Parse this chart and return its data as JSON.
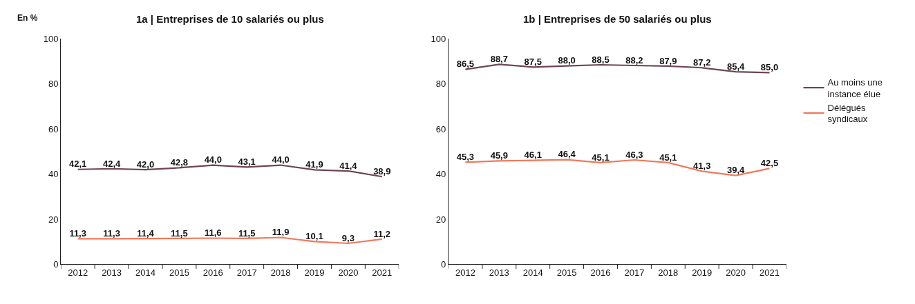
{
  "chart_data": [
    {
      "type": "line",
      "title": "1a | Entreprises de 10 salariés ou plus",
      "ylabel": "En %",
      "categories": [
        "2012",
        "2013",
        "2014",
        "2015",
        "2016",
        "2017",
        "2018",
        "2019",
        "2020",
        "2021"
      ],
      "ylim": [
        0,
        100
      ],
      "yticks": [
        0,
        20,
        40,
        60,
        80,
        100
      ],
      "legend": false,
      "marker": "none",
      "line_style": "solid",
      "series": [
        {
          "color": "#6e4456",
          "values": [
            42.1,
            42.4,
            42.0,
            42.8,
            44.0,
            43.1,
            44.0,
            41.9,
            41.4,
            38.9
          ],
          "value_labels": [
            "42,1",
            "42,4",
            "42,0",
            "42,8",
            "44,0",
            "43,1",
            "44,0",
            "41,9",
            "41,4",
            "38,9"
          ]
        },
        {
          "color": "#f4775a",
          "values": [
            11.3,
            11.3,
            11.4,
            11.5,
            11.6,
            11.5,
            11.9,
            10.1,
            9.3,
            11.2
          ],
          "value_labels": [
            "11,3",
            "11,3",
            "11,4",
            "11,5",
            "11,6",
            "11,5",
            "11,9",
            "10,1",
            "9,3",
            "11,2"
          ]
        }
      ]
    },
    {
      "type": "line",
      "title": "1b | Entreprises de 50 salariés ou plus",
      "categories": [
        "2012",
        "2013",
        "2014",
        "2015",
        "2016",
        "2017",
        "2018",
        "2019",
        "2020",
        "2021"
      ],
      "ylim": [
        0,
        100
      ],
      "yticks": [
        0,
        20,
        40,
        60,
        80,
        100
      ],
      "legend": "right",
      "marker": "none",
      "line_style": "solid",
      "series": [
        {
          "name": "Au moins une instance élue",
          "color": "#6e4456",
          "values": [
            86.5,
            88.7,
            87.5,
            88.0,
            88.5,
            88.2,
            87.9,
            87.2,
            85.4,
            85.0
          ],
          "value_labels": [
            "86,5",
            "88,7",
            "87,5",
            "88,0",
            "88,5",
            "88,2",
            "87,9",
            "87,2",
            "85,4",
            "85,0"
          ]
        },
        {
          "name": "Délégués syndicaux",
          "color": "#f4775a",
          "values": [
            45.3,
            45.9,
            46.1,
            46.4,
            45.1,
            46.3,
            45.1,
            41.3,
            39.4,
            42.5
          ],
          "value_labels": [
            "45,3",
            "45,9",
            "46,1",
            "46,4",
            "45,1",
            "46,3",
            "45,1",
            "41,3",
            "39,4",
            "42,5"
          ]
        }
      ]
    }
  ]
}
